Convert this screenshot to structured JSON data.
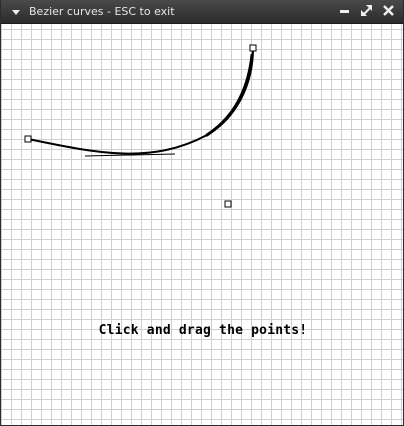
{
  "window": {
    "title": "Bezier curves - ESC to exit",
    "menu_icon": "triangle-down-icon",
    "buttons": [
      {
        "name": "minimize",
        "icon": "minimize-icon"
      },
      {
        "name": "maximize",
        "icon": "maximize-icon"
      },
      {
        "name": "close",
        "icon": "close-icon"
      }
    ]
  },
  "canvas": {
    "instructions": "Click and drag the points!",
    "grid_color": "#cfcfcf",
    "curve_color": "#000000"
  }
}
